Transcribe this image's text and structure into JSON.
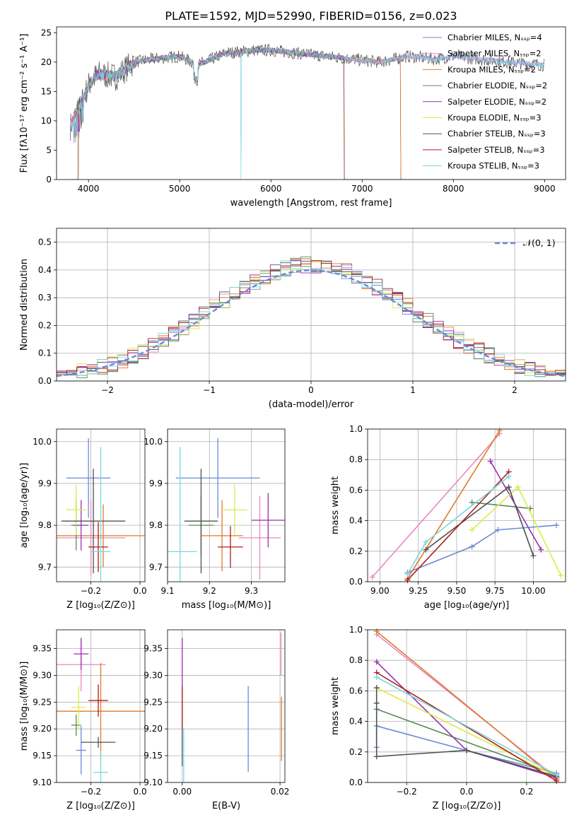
{
  "figure": {
    "title": "PLATE=1592, MJD=52990, FIBERID=0156, z=0.023"
  },
  "colors": {
    "Chabrier MILES": "#6a8ad6",
    "Salpeter MILES": "#e888c0",
    "Kroupa MILES": "#e07a2a",
    "Chabrier ELODIE": "#5a8a5a",
    "Salpeter ELODIE": "#9b2fb0",
    "Kroupa ELODIE": "#d8ec4a",
    "Chabrier STELIB": "#505050",
    "Salpeter STELIB": "#b01c1c",
    "Kroupa STELIB": "#7ad8dc"
  },
  "chart_data": [
    {
      "id": "spectrum",
      "type": "line",
      "xlabel": "wavelength [Angstrom, rest frame]",
      "ylabel": "Flux [fλ10⁻¹⁷ erg cm⁻² s⁻¹ A⁻¹]",
      "xlim": [
        3650,
        9230
      ],
      "ylim": [
        0,
        26
      ],
      "xticks": [
        "4000",
        "5000",
        "6000",
        "7000",
        "8000",
        "9000"
      ],
      "yticks": [
        "0",
        "5",
        "10",
        "15",
        "20",
        "25"
      ],
      "grid": false,
      "legend_position": "top-right",
      "legend": [
        "Chabrier MILES, Nₛₛₚ=4",
        "Salpeter MILES, Nₛₛₚ=2",
        "Kroupa MILES, Nₛₛₚ=2",
        "Chabrier ELODIE, Nₛₛₚ=2",
        "Salpeter ELODIE, Nₛₛₚ=2",
        "Kroupa ELODIE, Nₛₛₚ=3",
        "Chabrier STELIB, Nₛₛₚ=3",
        "Salpeter STELIB, Nₛₛₚ=3",
        "Kroupa STELIB, Nₛₛₚ=3"
      ],
      "continuum_x": [
        3800,
        3900,
        4000,
        4100,
        4300,
        4500,
        4700,
        5000,
        5200,
        5500,
        5800,
        6000,
        6300,
        6600,
        6900,
        7200,
        7500,
        7800,
        8000,
        8300,
        8600,
        9000
      ],
      "continuum_y": [
        9,
        12,
        16,
        18,
        17.5,
        20,
        20.5,
        21,
        19.5,
        21.5,
        22,
        22,
        21.5,
        21,
        20.5,
        20,
        21,
        20.5,
        21,
        20.5,
        20,
        19.5
      ]
    },
    {
      "id": "residuals",
      "type": "line",
      "xlabel": "(data-model)/error",
      "ylabel": "Normed distribution",
      "xlim": [
        -2.5,
        2.5
      ],
      "ylim": [
        0,
        0.55
      ],
      "xticks": [
        "−2",
        "−1",
        "0",
        "1",
        "2"
      ],
      "yticks": [
        "0.0",
        "0.1",
        "0.2",
        "0.3",
        "0.4",
        "0.5"
      ],
      "grid": true,
      "legend_position": "top-right",
      "legend": [
        "𝒩(0, 1)"
      ],
      "normal_mean": 0,
      "normal_sigma": 1
    },
    {
      "id": "age_vs_Z",
      "type": "scatter",
      "xlabel": "Z [log₁₀(Z/Z⊙)]",
      "ylabel": "age  [log₁₀(age/yr)]",
      "xlim": [
        -0.34,
        0.02
      ],
      "ylim": [
        9.665,
        10.03
      ],
      "xticks": [
        "−0.2",
        "0.0"
      ],
      "yticks": [
        "9.7",
        "9.8",
        "9.9",
        "10.0"
      ],
      "grid": true,
      "points": [
        {
          "name": "Chabrier MILES",
          "x": -0.21,
          "xerr": 0.09,
          "y": 9.913,
          "yerr": 0.095
        },
        {
          "name": "Salpeter MILES",
          "x": -0.2,
          "xerr": 0.14,
          "y": 9.77,
          "yerr": 0.09
        },
        {
          "name": "Kroupa MILES",
          "x": -0.15,
          "xerr": 0.19,
          "y": 9.775,
          "yerr": 0.075
        },
        {
          "name": "Chabrier ELODIE",
          "x": -0.26,
          "xerr": 0.02,
          "y": 9.8,
          "yerr": 0.06
        },
        {
          "name": "Salpeter ELODIE",
          "x": -0.24,
          "xerr": 0.03,
          "y": 9.8,
          "yerr": 0.06
        },
        {
          "name": "Kroupa ELODIE",
          "x": -0.26,
          "xerr": 0.04,
          "y": 9.837,
          "yerr": 0.06
        },
        {
          "name": "Chabrier STELIB",
          "x": -0.19,
          "xerr": 0.13,
          "y": 9.81,
          "yerr": 0.125
        },
        {
          "name": "Salpeter STELIB",
          "x": -0.17,
          "xerr": 0.04,
          "y": 9.748,
          "yerr": 0.06
        },
        {
          "name": "Kroupa STELIB",
          "x": -0.16,
          "xerr": 0.04,
          "y": 9.737,
          "yerr": 0.25
        }
      ]
    },
    {
      "id": "age_vs_mass",
      "type": "scatter",
      "xlabel": "mass [log₁₀(M/M⊙)]",
      "ylabel": "",
      "xlim": [
        9.1,
        9.38
      ],
      "ylim": [
        9.665,
        10.03
      ],
      "xticks": [
        "9.1",
        "9.2",
        "9.3"
      ],
      "yticks": [
        "9.7",
        "9.8",
        "9.9",
        "10.0"
      ],
      "grid": true,
      "points": [
        {
          "name": "Chabrier MILES",
          "x": 9.22,
          "xerr": 0.1,
          "y": 9.913,
          "yerr": 0.095
        },
        {
          "name": "Salpeter MILES",
          "x": 9.32,
          "xerr": 0.05,
          "y": 9.77,
          "yerr": 0.1
        },
        {
          "name": "Kroupa MILES",
          "x": 9.23,
          "xerr": 0.05,
          "y": 9.775,
          "yerr": 0.085
        },
        {
          "name": "Chabrier ELODIE",
          "x": 9.18,
          "xerr": 0.03,
          "y": 9.8,
          "yerr": 0.07
        },
        {
          "name": "Salpeter ELODIE",
          "x": 9.34,
          "xerr": 0.04,
          "y": 9.812,
          "yerr": 0.065
        },
        {
          "name": "Kroupa ELODIE",
          "x": 9.26,
          "xerr": 0.03,
          "y": 9.837,
          "yerr": 0.06
        },
        {
          "name": "Chabrier STELIB",
          "x": 9.18,
          "xerr": 0.04,
          "y": 9.81,
          "yerr": 0.125
        },
        {
          "name": "Salpeter STELIB",
          "x": 9.25,
          "xerr": 0.03,
          "y": 9.748,
          "yerr": 0.05
        },
        {
          "name": "Kroupa STELIB",
          "x": 9.13,
          "xerr": 0.04,
          "y": 9.737,
          "yerr": 0.25
        }
      ]
    },
    {
      "id": "weight_vs_age",
      "type": "line",
      "xlabel": "age  [log₁₀(age/yr)]",
      "ylabel": "mass weight",
      "xlim": [
        8.92,
        10.21
      ],
      "ylim": [
        0,
        1
      ],
      "xticks": [
        "9.00",
        "9.25",
        "9.50",
        "9.75",
        "10.00"
      ],
      "yticks": [
        "0.0",
        "0.2",
        "0.4",
        "0.6",
        "0.8",
        "1.0"
      ],
      "grid": true,
      "series": [
        {
          "name": "Chabrier MILES",
          "x": [
            9.18,
            9.6,
            9.77,
            10.15
          ],
          "y": [
            0.06,
            0.23,
            0.34,
            0.37
          ]
        },
        {
          "name": "Salpeter MILES",
          "x": [
            8.95,
            9.78
          ],
          "y": [
            0.03,
            0.97
          ]
        },
        {
          "name": "Kroupa MILES",
          "x": [
            9.18,
            9.78
          ],
          "y": [
            0.02,
            0.99
          ]
        },
        {
          "name": "Chabrier ELODIE",
          "x": [
            9.6,
            9.98
          ],
          "y": [
            0.52,
            0.48
          ]
        },
        {
          "name": "Salpeter ELODIE",
          "x": [
            9.72,
            10.05
          ],
          "y": [
            0.79,
            0.21
          ]
        },
        {
          "name": "Kroupa ELODIE",
          "x": [
            9.6,
            9.9,
            10.18
          ],
          "y": [
            0.34,
            0.62,
            0.04
          ]
        },
        {
          "name": "Chabrier STELIB",
          "x": [
            9.3,
            9.84,
            10.0
          ],
          "y": [
            0.21,
            0.62,
            0.17
          ]
        },
        {
          "name": "Salpeter STELIB",
          "x": [
            9.18,
            9.84
          ],
          "y": [
            0.01,
            0.72
          ]
        },
        {
          "name": "Kroupa STELIB",
          "x": [
            9.18,
            9.3,
            9.84
          ],
          "y": [
            0.05,
            0.26,
            0.69
          ]
        }
      ]
    },
    {
      "id": "mass_vs_Z",
      "type": "scatter",
      "xlabel": "Z [log₁₀(Z/Z⊙)]",
      "ylabel": "mass [log₁₀(M/M⊙)]",
      "xlim": [
        -0.34,
        0.02
      ],
      "ylim": [
        9.1,
        9.385
      ],
      "xticks": [
        "−0.2",
        "0.0"
      ],
      "yticks": [
        "9.10",
        "9.15",
        "9.20",
        "9.25",
        "9.30",
        "9.35"
      ],
      "grid": true,
      "points": [
        {
          "name": "Chabrier MILES",
          "x": -0.24,
          "xerr": 0.02,
          "y": 9.16,
          "yerr": 0.045
        },
        {
          "name": "Salpeter MILES",
          "x": -0.24,
          "xerr": 0.1,
          "y": 9.32,
          "yerr": 0.05
        },
        {
          "name": "Kroupa MILES",
          "x": -0.16,
          "xerr": 0.19,
          "y": 9.233,
          "yerr": 0.09
        },
        {
          "name": "Chabrier ELODIE",
          "x": -0.26,
          "xerr": 0.02,
          "y": 9.207,
          "yerr": 0.02
        },
        {
          "name": "Salpeter ELODIE",
          "x": -0.24,
          "xerr": 0.03,
          "y": 9.34,
          "yerr": 0.03
        },
        {
          "name": "Kroupa ELODIE",
          "x": -0.25,
          "xerr": 0.03,
          "y": 9.24,
          "yerr": 0.04
        },
        {
          "name": "Chabrier STELIB",
          "x": -0.17,
          "xerr": 0.07,
          "y": 9.175,
          "yerr": 0.01
        },
        {
          "name": "Salpeter STELIB",
          "x": -0.17,
          "xerr": 0.04,
          "y": 9.253,
          "yerr": 0.03
        },
        {
          "name": "Kroupa STELIB",
          "x": -0.16,
          "xerr": 0.03,
          "y": 9.119,
          "yerr": 0.04
        }
      ]
    },
    {
      "id": "mass_vs_EBV",
      "type": "scatter",
      "xlabel": "E(B-V)",
      "ylabel": "",
      "xlim": [
        -0.003,
        0.021
      ],
      "ylim": [
        9.1,
        9.385
      ],
      "xticks": [
        "0.00",
        "0.02"
      ],
      "yticks": [
        "9.10",
        "9.15",
        "9.20",
        "9.25",
        "9.30",
        "9.35"
      ],
      "grid": true,
      "points": [
        {
          "name": "Chabrier MILES",
          "x": 0.0135,
          "xerr": 0,
          "y": 9.2,
          "yerr": 0.08
        },
        {
          "name": "Salpeter MILES",
          "x": 0.0202,
          "xerr": 0,
          "y": 9.34,
          "yerr": 0.04
        },
        {
          "name": "Kroupa MILES",
          "x": 0.0203,
          "xerr": 0,
          "y": 9.2,
          "yerr": 0.06
        },
        {
          "name": "Salpeter ELODIE",
          "x": 0.0,
          "xerr": 0,
          "y": 9.3,
          "yerr": 0.07
        },
        {
          "name": "Chabrier STELIB",
          "x": 0.0,
          "xerr": 0,
          "y": 9.18,
          "yerr": 0.05
        },
        {
          "name": "Salpeter STELIB",
          "x": 0.0,
          "xerr": 0,
          "y": 9.24,
          "yerr": 0.04
        },
        {
          "name": "Kroupa STELIB",
          "x": 0.0003,
          "xerr": 0,
          "y": 9.15,
          "yerr": 0.05
        }
      ]
    },
    {
      "id": "weight_vs_Z",
      "type": "line",
      "xlabel": "Z [log₁₀(Z/Z⊙)]",
      "ylabel": "mass weight",
      "xlim": [
        -0.33,
        0.33
      ],
      "ylim": [
        0,
        1
      ],
      "xticks": [
        "−0.2",
        "0.0",
        "0.2"
      ],
      "yticks": [
        "0.0",
        "0.2",
        "0.4",
        "0.6",
        "0.8",
        "1.0"
      ],
      "grid": true,
      "series": [
        {
          "name": "Chabrier MILES",
          "x": [
            -0.3,
            -0.3,
            0.0,
            0.3
          ],
          "y": [
            0.23,
            0.37,
            0.21,
            0.06
          ]
        },
        {
          "name": "Salpeter MILES",
          "x": [
            -0.3,
            0.3
          ],
          "y": [
            0.97,
            0.03
          ]
        },
        {
          "name": "Kroupa MILES",
          "x": [
            -0.3,
            0.3
          ],
          "y": [
            0.99,
            0.02
          ]
        },
        {
          "name": "Chabrier ELODIE",
          "x": [
            -0.3,
            0.3
          ],
          "y": [
            0.48,
            0.05
          ]
        },
        {
          "name": "Salpeter ELODIE",
          "x": [
            -0.3,
            0.0,
            0.3
          ],
          "y": [
            0.79,
            0.21,
            0.03
          ]
        },
        {
          "name": "Kroupa ELODIE",
          "x": [
            -0.3,
            0.3
          ],
          "y": [
            0.62,
            0.04
          ]
        },
        {
          "name": "Chabrier STELIB",
          "x": [
            -0.3,
            -0.3,
            -0.3,
            0.0,
            0.3
          ],
          "y": [
            0.62,
            0.52,
            0.17,
            0.21,
            0.04
          ]
        },
        {
          "name": "Salpeter STELIB",
          "x": [
            -0.3,
            0.3
          ],
          "y": [
            0.72,
            0.01
          ]
        },
        {
          "name": "Kroupa STELIB",
          "x": [
            -0.3,
            0.3
          ],
          "y": [
            0.69,
            0.05
          ]
        }
      ]
    }
  ]
}
